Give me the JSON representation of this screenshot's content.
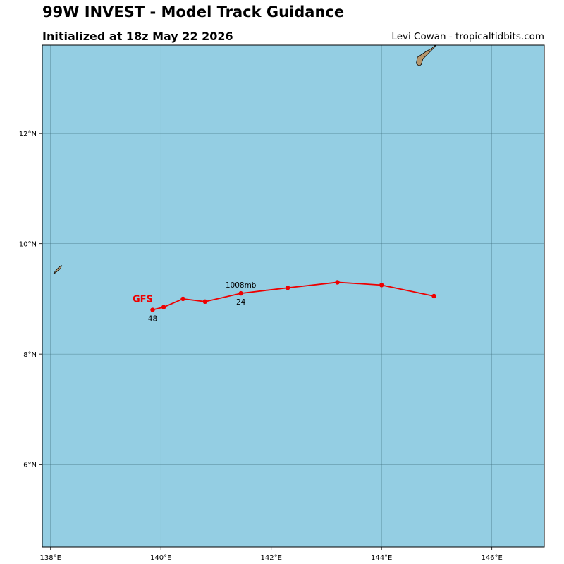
{
  "header": {
    "title": "99W INVEST - Model Track Guidance",
    "subtitle": "Initialized at 18z May 22 2026",
    "credit": "Levi Cowan - tropicaltidbits.com"
  },
  "colors": {
    "ocean": "#94cee3",
    "land": "#b5956b",
    "track": "#ee0000",
    "grid": "#3a6a76"
  },
  "chart_data": {
    "type": "line",
    "xlim": [
      137.85,
      146.95
    ],
    "ylim": [
      4.5,
      13.6
    ],
    "x_ticks": [
      138,
      140,
      142,
      144,
      146
    ],
    "x_tick_labels": [
      "138°E",
      "140°E",
      "142°E",
      "144°E",
      "146°E"
    ],
    "y_ticks": [
      6,
      8,
      10,
      12
    ],
    "y_tick_labels": [
      "6°N",
      "8°N",
      "10°N",
      "12°N"
    ],
    "grid": true,
    "series": [
      {
        "name": "GFS",
        "lon": [
          144.95,
          144.0,
          143.2,
          142.3,
          141.45,
          140.8,
          140.4,
          140.05,
          139.85
        ],
        "lat": [
          9.05,
          9.25,
          9.3,
          9.2,
          9.1,
          8.95,
          9.0,
          8.85,
          8.8
        ]
      }
    ],
    "annotations": [
      {
        "text": "1008mb",
        "lon": 141.45,
        "lat": 9.1,
        "position": "above"
      },
      {
        "text": "24",
        "lon": 141.45,
        "lat": 9.1,
        "position": "below"
      },
      {
        "text": "48",
        "lon": 139.85,
        "lat": 8.8,
        "position": "below"
      }
    ],
    "land": [
      {
        "name": "island-northeast",
        "lon": [
          144.65,
          144.8,
          144.92,
          145.0,
          144.95,
          144.85,
          144.75,
          144.72,
          144.68,
          144.63,
          144.65
        ],
        "lat": [
          13.38,
          13.48,
          13.55,
          13.62,
          13.55,
          13.45,
          13.35,
          13.25,
          13.22,
          13.27,
          13.38
        ]
      },
      {
        "name": "island-west",
        "lon": [
          138.05,
          138.1,
          138.16,
          138.2,
          138.18,
          138.12,
          138.07,
          138.05
        ],
        "lat": [
          9.45,
          9.52,
          9.58,
          9.6,
          9.55,
          9.5,
          9.46,
          9.45
        ]
      }
    ]
  }
}
